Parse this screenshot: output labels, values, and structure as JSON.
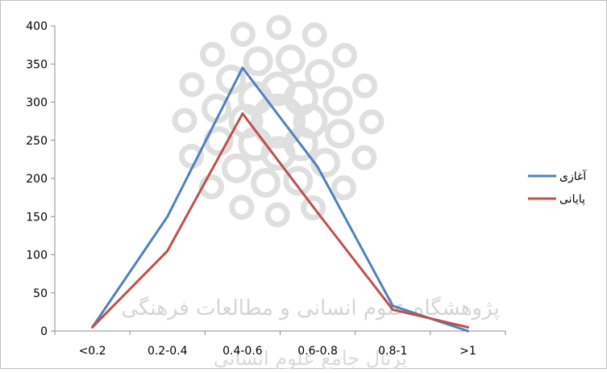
{
  "watermark": {
    "line1": "پژوهشگاه علوم انسانی و مطالعات فرهنگی",
    "line2": "پرتال جامع علوم انسانی"
  },
  "chart_data": {
    "type": "line",
    "categories": [
      "<0.2",
      "0.2-0.4",
      "0.4-0.6",
      "0.6-0.8",
      "0.8-1",
      ">1"
    ],
    "ylim": [
      0,
      400
    ],
    "yticks": [
      0,
      50,
      100,
      150,
      200,
      250,
      300,
      350,
      400
    ],
    "ytick_labels": [
      "0",
      "50",
      "100",
      "150",
      "200",
      "250",
      "300",
      "350",
      "400"
    ],
    "grid": false,
    "legend_position": "right",
    "series": [
      {
        "name": "آغازی",
        "color": "#4f81bd",
        "values": [
          5,
          150,
          345,
          215,
          33,
          0
        ]
      },
      {
        "name": "پایانی",
        "color": "#c0504d",
        "values": [
          5,
          105,
          285,
          155,
          28,
          5
        ]
      }
    ]
  }
}
